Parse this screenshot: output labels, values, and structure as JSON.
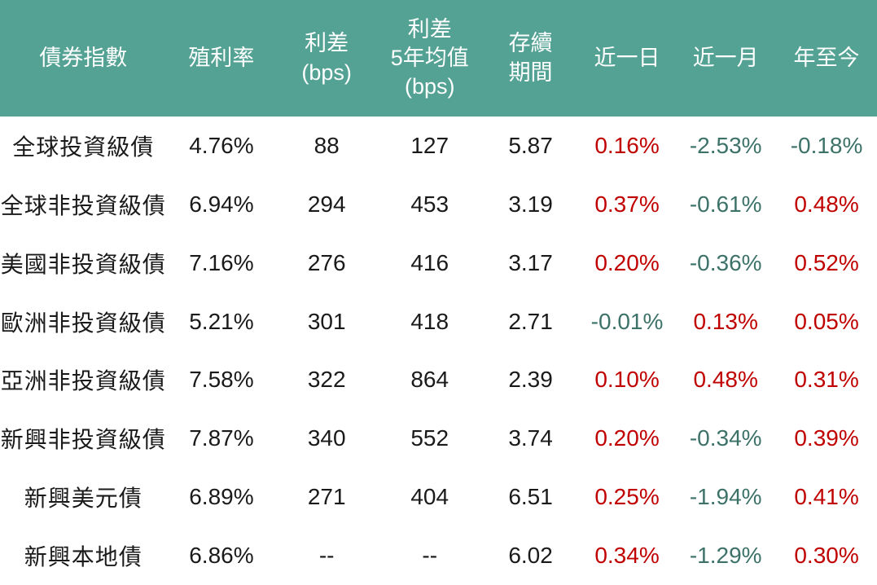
{
  "theme": {
    "header_bg": "#54a294",
    "header_text": "#ffffff",
    "body_text": "#1a1a1a",
    "red": "#c00000",
    "teal": "#3d7269"
  },
  "table": {
    "columns": [
      {
        "key": "name",
        "label": "債券指數"
      },
      {
        "key": "yield",
        "label": "殖利率"
      },
      {
        "key": "spread",
        "label": "利差\n(bps)"
      },
      {
        "key": "spread_5y_avg",
        "label": "利差\n5年均值\n(bps)"
      },
      {
        "key": "duration",
        "label": "存續\n期間"
      },
      {
        "key": "day",
        "label": "近一日"
      },
      {
        "key": "month",
        "label": "近一月"
      },
      {
        "key": "ytd",
        "label": "年至今"
      }
    ],
    "rows": [
      {
        "name": "全球投資級債",
        "yield": "4.76%",
        "spread": "88",
        "spread_5y_avg": "127",
        "duration": "5.87",
        "day": {
          "text": "0.16%",
          "color": "red"
        },
        "month": {
          "text": "-2.53%",
          "color": "teal"
        },
        "ytd": {
          "text": "-0.18%",
          "color": "teal"
        }
      },
      {
        "name": "全球非投資級債",
        "yield": "6.94%",
        "spread": "294",
        "spread_5y_avg": "453",
        "duration": "3.19",
        "day": {
          "text": "0.37%",
          "color": "red"
        },
        "month": {
          "text": "-0.61%",
          "color": "teal"
        },
        "ytd": {
          "text": "0.48%",
          "color": "red"
        }
      },
      {
        "name": "美國非投資級債",
        "yield": "7.16%",
        "spread": "276",
        "spread_5y_avg": "416",
        "duration": "3.17",
        "day": {
          "text": "0.20%",
          "color": "red"
        },
        "month": {
          "text": "-0.36%",
          "color": "teal"
        },
        "ytd": {
          "text": "0.52%",
          "color": "red"
        }
      },
      {
        "name": "歐洲非投資級債",
        "yield": "5.21%",
        "spread": "301",
        "spread_5y_avg": "418",
        "duration": "2.71",
        "day": {
          "text": "-0.01%",
          "color": "teal"
        },
        "month": {
          "text": "0.13%",
          "color": "red"
        },
        "ytd": {
          "text": "0.05%",
          "color": "red"
        }
      },
      {
        "name": "亞洲非投資級債",
        "yield": "7.58%",
        "spread": "322",
        "spread_5y_avg": "864",
        "duration": "2.39",
        "day": {
          "text": "0.10%",
          "color": "red"
        },
        "month": {
          "text": "0.48%",
          "color": "red"
        },
        "ytd": {
          "text": "0.31%",
          "color": "red"
        }
      },
      {
        "name": "新興非投資級債",
        "yield": "7.87%",
        "spread": "340",
        "spread_5y_avg": "552",
        "duration": "3.74",
        "day": {
          "text": "0.20%",
          "color": "red"
        },
        "month": {
          "text": "-0.34%",
          "color": "teal"
        },
        "ytd": {
          "text": "0.39%",
          "color": "red"
        }
      },
      {
        "name": "新興美元債",
        "yield": "6.89%",
        "spread": "271",
        "spread_5y_avg": "404",
        "duration": "6.51",
        "day": {
          "text": "0.25%",
          "color": "red"
        },
        "month": {
          "text": "-1.94%",
          "color": "teal"
        },
        "ytd": {
          "text": "0.41%",
          "color": "red"
        }
      },
      {
        "name": "新興本地債",
        "yield": "6.86%",
        "spread": "--",
        "spread_5y_avg": "--",
        "duration": "6.02",
        "day": {
          "text": "0.34%",
          "color": "red"
        },
        "month": {
          "text": "-1.29%",
          "color": "teal"
        },
        "ytd": {
          "text": "0.30%",
          "color": "red"
        }
      }
    ]
  },
  "chart_data": {
    "type": "table",
    "title": "",
    "columns": [
      "債券指數",
      "殖利率",
      "利差(bps)",
      "利差5年均值(bps)",
      "存續期間",
      "近一日",
      "近一月",
      "年至今"
    ],
    "rows": [
      [
        "全球投資級債",
        "4.76%",
        "88",
        "127",
        "5.87",
        "0.16%",
        "-2.53%",
        "-0.18%"
      ],
      [
        "全球非投資級債",
        "6.94%",
        "294",
        "453",
        "3.19",
        "0.37%",
        "-0.61%",
        "0.48%"
      ],
      [
        "美國非投資級債",
        "7.16%",
        "276",
        "416",
        "3.17",
        "0.20%",
        "-0.36%",
        "0.52%"
      ],
      [
        "歐洲非投資級債",
        "5.21%",
        "301",
        "418",
        "2.71",
        "-0.01%",
        "0.13%",
        "0.05%"
      ],
      [
        "亞洲非投資級債",
        "7.58%",
        "322",
        "864",
        "2.39",
        "0.10%",
        "0.48%",
        "0.31%"
      ],
      [
        "新興非投資級債",
        "7.87%",
        "340",
        "552",
        "3.74",
        "0.20%",
        "-0.34%",
        "0.39%"
      ],
      [
        "新興美元債",
        "6.89%",
        "271",
        "404",
        "6.51",
        "0.25%",
        "-1.94%",
        "0.41%"
      ],
      [
        "新興本地債",
        "6.86%",
        "--",
        "--",
        "6.02",
        "0.34%",
        "-1.29%",
        "0.30%"
      ]
    ],
    "legend_convention": "positive values shown in red, negative values shown in teal"
  }
}
